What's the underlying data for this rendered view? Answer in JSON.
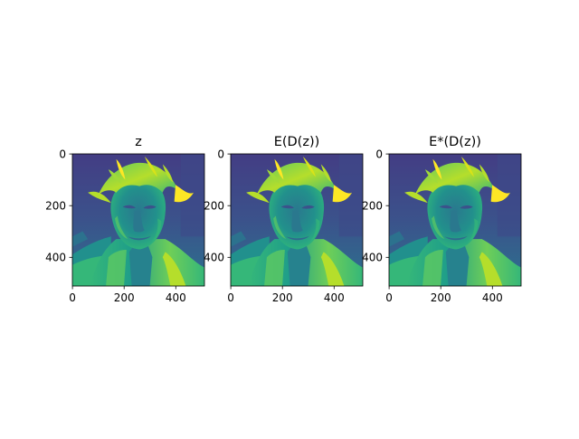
{
  "chart_data": [
    {
      "type": "heatmap",
      "title": "z",
      "colormap": "viridis",
      "xlim": [
        0,
        511
      ],
      "ylim": [
        511,
        0
      ],
      "xticks": [
        0,
        200,
        400
      ],
      "yticks": [
        0,
        200,
        400
      ],
      "x_tick_labels": [
        "0",
        "200",
        "400"
      ],
      "y_tick_labels": [
        "0",
        "200",
        "400"
      ],
      "image_size": [
        512,
        512
      ]
    },
    {
      "type": "heatmap",
      "title": "E(D(z))",
      "colormap": "viridis",
      "xlim": [
        0,
        511
      ],
      "ylim": [
        511,
        0
      ],
      "xticks": [
        0,
        200,
        400
      ],
      "yticks": [
        0,
        200,
        400
      ],
      "x_tick_labels": [
        "0",
        "200",
        "400"
      ],
      "y_tick_labels": [
        "0",
        "200",
        "400"
      ],
      "image_size": [
        512,
        512
      ]
    },
    {
      "type": "heatmap",
      "title": "E*(D(z))",
      "colormap": "viridis",
      "xlim": [
        0,
        511
      ],
      "ylim": [
        511,
        0
      ],
      "xticks": [
        0,
        200,
        400
      ],
      "yticks": [
        0,
        200,
        400
      ],
      "x_tick_labels": [
        "0",
        "200",
        "400"
      ],
      "y_tick_labels": [
        "0",
        "200",
        "400"
      ],
      "image_size": [
        512,
        512
      ]
    }
  ],
  "colors": {
    "viridis_dark": "#3b3f8a",
    "viridis_mid": "#21908d",
    "viridis_green": "#5ec962",
    "viridis_yellow": "#fde725",
    "axis": "#000000"
  }
}
